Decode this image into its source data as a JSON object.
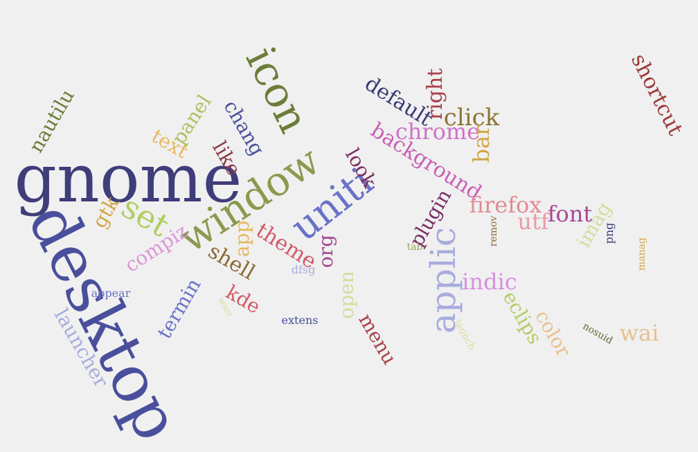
{
  "words": [
    {
      "text": "gnome",
      "color": "#3f3d7a"
    },
    {
      "text": "desktop",
      "color": "#4a4f9c"
    },
    {
      "text": "window",
      "color": "#8a9a4e"
    },
    {
      "text": "icon",
      "color": "#6b7d3a"
    },
    {
      "text": "uniti",
      "color": "#6a72c8"
    },
    {
      "text": "applic",
      "color": "#a8acde"
    },
    {
      "text": "set",
      "color": "#b3cc63"
    },
    {
      "text": "background",
      "color": "#c95fb5"
    },
    {
      "text": "shortcut",
      "color": "#9b3a3a"
    },
    {
      "text": "default",
      "color": "#3a3a78"
    },
    {
      "text": "chrome",
      "color": "#cf72c8"
    },
    {
      "text": "click",
      "color": "#8c7436"
    },
    {
      "text": "firefox",
      "color": "#e28a92"
    },
    {
      "text": "font",
      "color": "#a24a92"
    },
    {
      "text": "utf",
      "color": "#e89aa6"
    },
    {
      "text": "indic",
      "color": "#d88fde"
    },
    {
      "text": "theme",
      "color": "#d05a68"
    },
    {
      "text": "compiz",
      "color": "#dc95d8"
    },
    {
      "text": "right",
      "color": "#a8404a"
    },
    {
      "text": "bar",
      "color": "#d2a648"
    },
    {
      "text": "plugin",
      "color": "#7a2e62"
    },
    {
      "text": "look",
      "color": "#7a2e62"
    },
    {
      "text": "shell",
      "color": "#8c6a34"
    },
    {
      "text": "panel",
      "color": "#b0c060"
    },
    {
      "text": "text",
      "color": "#e8b860"
    },
    {
      "text": "nautilu",
      "color": "#6b7d3a"
    },
    {
      "text": "chang",
      "color": "#4a4f9c"
    },
    {
      "text": "like",
      "color": "#8b3a48"
    },
    {
      "text": "app",
      "color": "#e8b860"
    },
    {
      "text": "gtk",
      "color": "#d2a648"
    },
    {
      "text": "org",
      "color": "#a24a92"
    },
    {
      "text": "open",
      "color": "#d6dc9c"
    },
    {
      "text": "menu",
      "color": "#a8404a"
    },
    {
      "text": "kde",
      "color": "#d05a68"
    },
    {
      "text": "termin",
      "color": "#6a72c8"
    },
    {
      "text": "launcher",
      "color": "#a8acde"
    },
    {
      "text": "eclips",
      "color": "#b3cc63"
    },
    {
      "text": "color",
      "color": "#e8c090"
    },
    {
      "text": "wai",
      "color": "#e8c090"
    },
    {
      "text": "imag",
      "color": "#d6dc9c"
    },
    {
      "text": "png",
      "color": "#3a3a78"
    },
    {
      "text": "manag",
      "color": "#d2a648"
    },
    {
      "text": "remov",
      "color": "#8c6a34"
    },
    {
      "text": "nosuid",
      "color": "#5a6a30"
    },
    {
      "text": "launch",
      "color": "#d6dc9c"
    },
    {
      "text": "extens",
      "color": "#4a4f9c"
    },
    {
      "text": "dfsg",
      "color": "#a8acde"
    },
    {
      "text": "appear",
      "color": "#6a72c8"
    },
    {
      "text": "want",
      "color": "#d6dc9c"
    },
    {
      "text": "tab",
      "color": "#a0a060"
    }
  ]
}
